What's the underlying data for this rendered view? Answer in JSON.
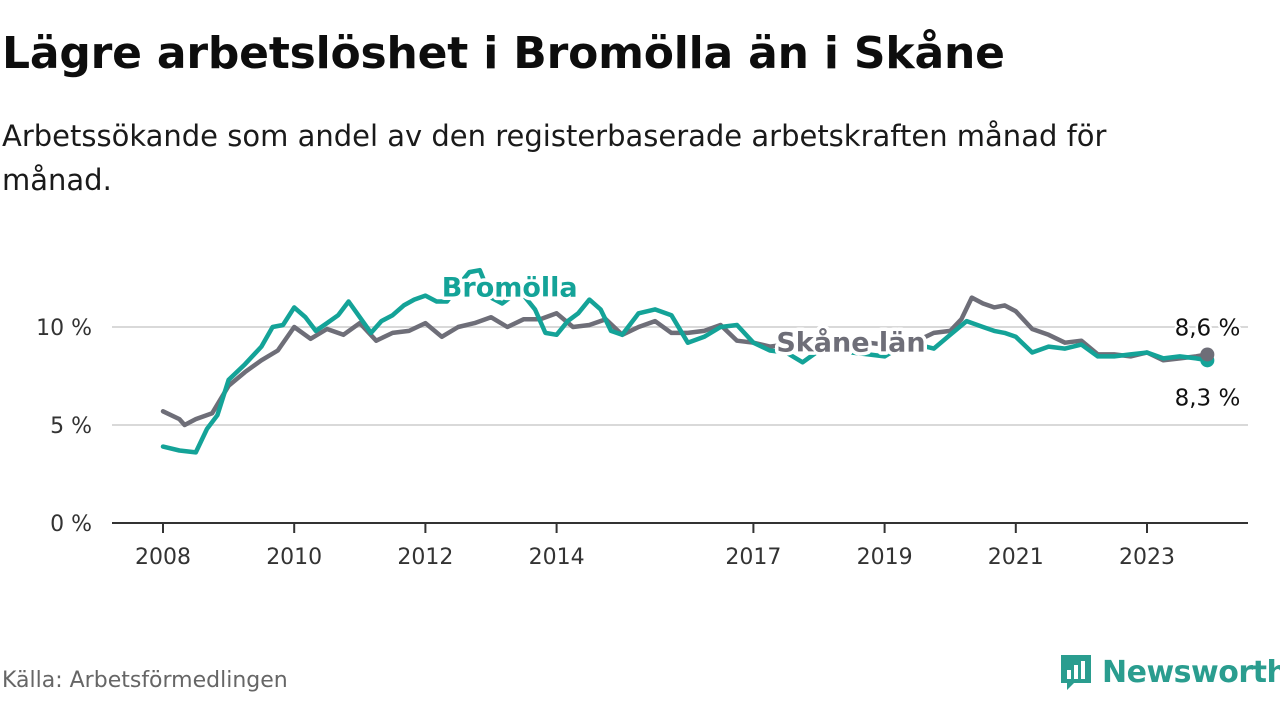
{
  "title": "Lägre arbetslöshet i Bromölla än i Skåne",
  "subtitle": "Arbetssökande som andel av den registerbaserade arbetskraften månad för månad.",
  "source": "Källa: Arbetsförmedlingen",
  "brand": "Newsworthy",
  "colors": {
    "bromolla": "#14a398",
    "skane": "#6e6e78",
    "grid": "#d9d9d9",
    "axis": "#333333",
    "brand": "#2a9d8f"
  },
  "chart_data": {
    "type": "line",
    "title": "Lägre arbetslöshet i Bromölla än i Skåne",
    "xlabel": "",
    "ylabel": "",
    "xlim": [
      2008,
      2024.3
    ],
    "ylim": [
      0,
      13
    ],
    "yticks": [
      0,
      5,
      10
    ],
    "ytick_labels": [
      "0 %",
      "5 %",
      "10 %"
    ],
    "xticks": [
      2008,
      2010,
      2012,
      2014,
      2017,
      2019,
      2021,
      2023
    ],
    "xtick_labels": [
      "2008",
      "2010",
      "2012",
      "2014",
      "2017",
      "2019",
      "2021",
      "2023"
    ],
    "series": [
      {
        "name": "Bromölla",
        "label": "Bromölla",
        "color": "#14a398",
        "end_label": "8,3 %",
        "x": [
          2008.0,
          2008.25,
          2008.5,
          2008.67,
          2008.83,
          2009.0,
          2009.25,
          2009.5,
          2009.67,
          2009.83,
          2010.0,
          2010.17,
          2010.33,
          2010.5,
          2010.67,
          2010.83,
          2011.0,
          2011.17,
          2011.33,
          2011.5,
          2011.67,
          2011.83,
          2012.0,
          2012.17,
          2012.33,
          2012.5,
          2012.67,
          2012.83,
          2013.0,
          2013.17,
          2013.33,
          2013.5,
          2013.67,
          2013.83,
          2014.0,
          2014.17,
          2014.33,
          2014.5,
          2014.67,
          2014.83,
          2015.0,
          2015.25,
          2015.5,
          2015.75,
          2016.0,
          2016.25,
          2016.5,
          2016.75,
          2017.0,
          2017.25,
          2017.5,
          2017.75,
          2018.0,
          2018.25,
          2018.5,
          2018.75,
          2019.0,
          2019.25,
          2019.5,
          2019.75,
          2020.0,
          2020.25,
          2020.5,
          2020.67,
          2020.83,
          2021.0,
          2021.25,
          2021.5,
          2021.75,
          2022.0,
          2022.25,
          2022.5,
          2022.75,
          2023.0,
          2023.25,
          2023.5,
          2023.75,
          2023.92
        ],
        "values": [
          3.9,
          3.7,
          3.6,
          4.8,
          5.5,
          7.3,
          8.1,
          9.0,
          10.0,
          10.1,
          11.0,
          10.5,
          9.8,
          10.2,
          10.6,
          11.3,
          10.5,
          9.7,
          10.3,
          10.6,
          11.1,
          11.4,
          11.6,
          11.3,
          11.3,
          12.1,
          12.8,
          12.9,
          11.5,
          11.2,
          11.6,
          11.6,
          10.9,
          9.7,
          9.6,
          10.3,
          10.7,
          11.4,
          10.9,
          9.8,
          9.6,
          10.7,
          10.9,
          10.6,
          9.2,
          9.5,
          10.0,
          10.1,
          9.2,
          8.8,
          8.7,
          8.2,
          8.8,
          9.1,
          8.7,
          8.6,
          8.5,
          9.0,
          9.1,
          8.9,
          9.6,
          10.3,
          10.0,
          9.8,
          9.7,
          9.5,
          8.7,
          9.0,
          8.9,
          9.1,
          8.5,
          8.5,
          8.6,
          8.7,
          8.4,
          8.5,
          8.4,
          8.3
        ]
      },
      {
        "name": "Skåne län",
        "label": "Skåne län",
        "color": "#6e6e78",
        "end_label": "8,6 %",
        "x": [
          2008.0,
          2008.25,
          2008.33,
          2008.5,
          2008.75,
          2009.0,
          2009.25,
          2009.5,
          2009.75,
          2010.0,
          2010.25,
          2010.5,
          2010.75,
          2011.0,
          2011.25,
          2011.5,
          2011.75,
          2012.0,
          2012.25,
          2012.5,
          2012.75,
          2013.0,
          2013.25,
          2013.5,
          2013.75,
          2014.0,
          2014.25,
          2014.5,
          2014.75,
          2015.0,
          2015.25,
          2015.5,
          2015.75,
          2016.0,
          2016.25,
          2016.5,
          2016.75,
          2017.0,
          2017.25,
          2017.5,
          2017.75,
          2018.0,
          2018.25,
          2018.5,
          2018.75,
          2019.0,
          2019.25,
          2019.5,
          2019.75,
          2020.0,
          2020.17,
          2020.33,
          2020.5,
          2020.67,
          2020.83,
          2021.0,
          2021.25,
          2021.5,
          2021.75,
          2022.0,
          2022.25,
          2022.5,
          2022.75,
          2023.0,
          2023.25,
          2023.5,
          2023.75,
          2023.92
        ],
        "values": [
          5.7,
          5.3,
          5.0,
          5.3,
          5.6,
          7.0,
          7.7,
          8.3,
          8.8,
          10.0,
          9.4,
          9.9,
          9.6,
          10.2,
          9.3,
          9.7,
          9.8,
          10.2,
          9.5,
          10.0,
          10.2,
          10.5,
          10.0,
          10.4,
          10.4,
          10.7,
          10.0,
          10.1,
          10.4,
          9.6,
          10.0,
          10.3,
          9.7,
          9.7,
          9.8,
          10.1,
          9.3,
          9.2,
          9.0,
          9.1,
          9.4,
          9.3,
          9.0,
          9.1,
          9.2,
          9.1,
          9.2,
          9.3,
          9.7,
          9.8,
          10.4,
          11.5,
          11.2,
          11.0,
          11.1,
          10.8,
          9.9,
          9.6,
          9.2,
          9.3,
          8.6,
          8.6,
          8.5,
          8.7,
          8.3,
          8.4,
          8.5,
          8.6
        ]
      }
    ]
  }
}
